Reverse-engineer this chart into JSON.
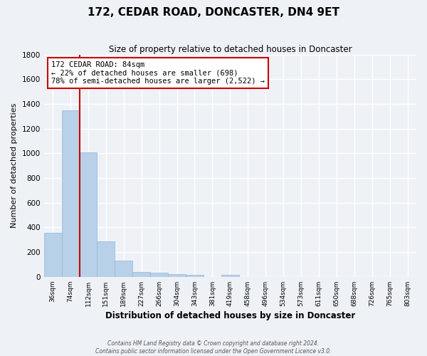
{
  "title": "172, CEDAR ROAD, DONCASTER, DN4 9ET",
  "subtitle": "Size of property relative to detached houses in Doncaster",
  "xlabel": "Distribution of detached houses by size in Doncaster",
  "ylabel": "Number of detached properties",
  "bar_color": "#b8d0e8",
  "bar_edge_color": "#90b8d8",
  "background_color": "#eef2f7",
  "grid_color": "#ffffff",
  "bin_labels": [
    "36sqm",
    "74sqm",
    "112sqm",
    "151sqm",
    "189sqm",
    "227sqm",
    "266sqm",
    "304sqm",
    "343sqm",
    "381sqm",
    "419sqm",
    "458sqm",
    "496sqm",
    "534sqm",
    "573sqm",
    "611sqm",
    "650sqm",
    "688sqm",
    "726sqm",
    "765sqm",
    "803sqm"
  ],
  "values": [
    355,
    1350,
    1010,
    290,
    130,
    40,
    35,
    20,
    15,
    0,
    15,
    0,
    0,
    0,
    0,
    0,
    0,
    0,
    0,
    0,
    0
  ],
  "vline_index": 1,
  "vline_color": "#cc0000",
  "annotation_text": "172 CEDAR ROAD: 84sqm\n← 22% of detached houses are smaller (698)\n78% of semi-detached houses are larger (2,522) →",
  "annotation_box_color": "#ffffff",
  "annotation_box_edge_color": "#cc0000",
  "ylim": [
    0,
    1800
  ],
  "yticks": [
    0,
    200,
    400,
    600,
    800,
    1000,
    1200,
    1400,
    1600,
    1800
  ],
  "footer_line1": "Contains HM Land Registry data © Crown copyright and database right 2024.",
  "footer_line2": "Contains public sector information licensed under the Open Government Licence v3.0."
}
